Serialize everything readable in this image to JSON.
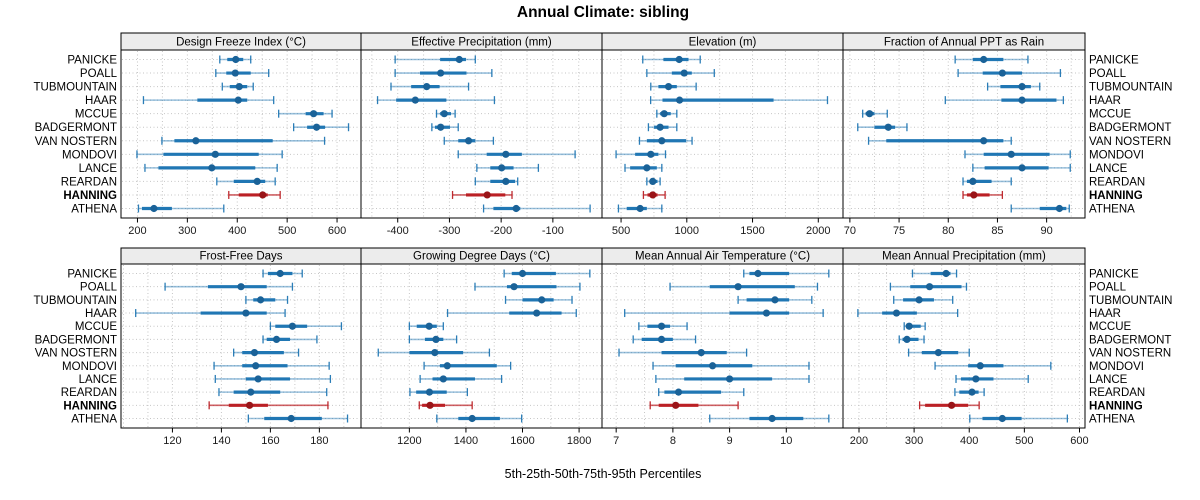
{
  "title": "Annual Climate: sibling",
  "caption": "5th-25th-50th-75th-95th Percentiles",
  "style": {
    "series_color": "#2077b4",
    "series_dot_color": "#1a6298",
    "highlight_color": "#bb2025",
    "highlight_dot_color": "#9a1418",
    "grid_color": "#c6c6c6",
    "strip_bg": "#ececec",
    "border_color": "#000000",
    "tick_label_color": "#1a1a1a"
  },
  "chart_data": {
    "type": "scatter",
    "subtype": "lattice percentile dotplot (dot = median, thick bar = 25th-75th, thin whisker = 5th-95th)",
    "percentiles": [
      5,
      25,
      50,
      75,
      95
    ],
    "stations": [
      "PANICKE",
      "POALL",
      "TUBMOUNTAIN",
      "HAAR",
      "MCCUE",
      "BADGERMONT",
      "VAN NOSTERN",
      "MONDOVI",
      "LANCE",
      "REARDAN",
      "HANNING",
      "ATHENA"
    ],
    "highlight_station": "HANNING",
    "legend_note": "highlighted station drawn in red, all others blue",
    "panels": [
      {
        "title": "Design Freeze Index (°C)",
        "row": 0,
        "col": 0,
        "domain": [
          167,
          648
        ],
        "ticks": [
          200,
          300,
          400,
          500,
          600
        ],
        "grid_step": 50,
        "series": [
          [
            365,
            380,
            397,
            412,
            427
          ],
          [
            357,
            378,
            396,
            427,
            463
          ],
          [
            370,
            385,
            404,
            420,
            432
          ],
          [
            212,
            320,
            402,
            420,
            473
          ],
          [
            483,
            537,
            553,
            573,
            590
          ],
          [
            513,
            540,
            559,
            576,
            623
          ],
          [
            249,
            274,
            317,
            471,
            575
          ],
          [
            199,
            252,
            356,
            443,
            490
          ],
          [
            215,
            242,
            349,
            436,
            480
          ],
          [
            359,
            393,
            440,
            456,
            476
          ],
          [
            383,
            403,
            451,
            461,
            486
          ],
          [
            202,
            209,
            233,
            269,
            373
          ]
        ]
      },
      {
        "title": "Effective Precipitation (mm)",
        "row": 0,
        "col": 1,
        "domain": [
          -471,
          -5
        ],
        "ticks": [
          -400,
          -300,
          -200,
          -100
        ],
        "grid_step": 50,
        "series": [
          [
            -405,
            -318,
            -281,
            -268,
            -250
          ],
          [
            -405,
            -357,
            -317,
            -267,
            -218
          ],
          [
            -413,
            -374,
            -344,
            -319,
            -263
          ],
          [
            -439,
            -403,
            -366,
            -306,
            -213
          ],
          [
            -325,
            -318,
            -310,
            -297,
            -289
          ],
          [
            -334,
            -328,
            -317,
            -299,
            -283
          ],
          [
            -310,
            -283,
            -263,
            -250,
            -215
          ],
          [
            -283,
            -228,
            -191,
            -160,
            -57
          ],
          [
            -247,
            -221,
            -199,
            -176,
            -128
          ],
          [
            -250,
            -221,
            -191,
            -173,
            -168
          ],
          [
            -294,
            -268,
            -227,
            -192,
            -179
          ],
          [
            -234,
            -215,
            -171,
            -163,
            -28
          ]
        ]
      },
      {
        "title": "Elevation (m)",
        "row": 0,
        "col": 2,
        "domain": [
          355,
          2188
        ],
        "ticks": [
          500,
          1000,
          1500,
          2000
        ],
        "grid_step": 250,
        "series": [
          [
            665,
            822,
            942,
            1013,
            1102
          ],
          [
            696,
            886,
            980,
            1038,
            1209
          ],
          [
            726,
            784,
            861,
            924,
            1071
          ],
          [
            725,
            815,
            945,
            1660,
            2070
          ],
          [
            772,
            797,
            828,
            878,
            924
          ],
          [
            708,
            751,
            797,
            861,
            924
          ],
          [
            640,
            696,
            810,
            995,
            1040
          ],
          [
            462,
            607,
            726,
            784,
            838
          ],
          [
            530,
            569,
            696,
            772,
            810
          ],
          [
            696,
            716,
            741,
            777,
            797
          ],
          [
            670,
            701,
            741,
            777,
            835
          ],
          [
            480,
            543,
            645,
            696,
            810
          ]
        ]
      },
      {
        "title": "Fraction of Annual PPT as Rain",
        "row": 0,
        "col": 3,
        "domain": [
          69.3,
          93.9
        ],
        "ticks": [
          70,
          75,
          80,
          85,
          90
        ],
        "grid_step": 2.5,
        "series": [
          [
            80.7,
            82.5,
            83.6,
            85.6,
            88.1
          ],
          [
            81.0,
            83.5,
            85.5,
            87.5,
            91.4
          ],
          [
            84.0,
            85.3,
            87.5,
            88.4,
            89.3
          ],
          [
            79.7,
            85.4,
            87.5,
            91.0,
            91.7
          ],
          [
            71.3,
            71.6,
            72.0,
            72.5,
            73.8
          ],
          [
            70.8,
            72.5,
            73.9,
            74.6,
            75.8
          ],
          [
            71.9,
            73.7,
            83.6,
            85.6,
            86.4
          ],
          [
            81.7,
            83.6,
            86.4,
            90.3,
            92.4
          ],
          [
            82.5,
            83.7,
            87.5,
            90.2,
            92.4
          ],
          [
            81.5,
            81.9,
            82.5,
            84.4,
            86.4
          ],
          [
            81.5,
            81.9,
            82.6,
            84.2,
            85.5
          ],
          [
            86.4,
            89.3,
            91.3,
            92.0,
            92.3
          ]
        ]
      },
      {
        "title": "Frost-Free Days",
        "row": 1,
        "col": 0,
        "domain": [
          99,
          197
        ],
        "ticks": [
          120,
          140,
          160,
          180
        ],
        "grid_step": 10,
        "series": [
          [
            157,
            159,
            164,
            169,
            173
          ],
          [
            117,
            134.5,
            148,
            158.5,
            169
          ],
          [
            150,
            153,
            156,
            162,
            167
          ],
          [
            105,
            131.5,
            150,
            158.5,
            166
          ],
          [
            160,
            162,
            169,
            175,
            189
          ],
          [
            157,
            158.5,
            162.5,
            168,
            179
          ],
          [
            145,
            148.5,
            153.5,
            165.5,
            171.5
          ],
          [
            137,
            148.5,
            154,
            167,
            184
          ],
          [
            137.5,
            150,
            155,
            168,
            184.5
          ],
          [
            139,
            145,
            152,
            164,
            183
          ],
          [
            135,
            143,
            151.5,
            159,
            183.5
          ],
          [
            151,
            157.5,
            168.5,
            181,
            191.5
          ]
        ]
      },
      {
        "title": "Growing Degree Days (°C)",
        "row": 1,
        "col": 1,
        "domain": [
          1029,
          1881
        ],
        "ticks": [
          1200,
          1400,
          1600,
          1800
        ],
        "grid_step": 100,
        "series": [
          [
            1535,
            1562,
            1600,
            1718,
            1838
          ],
          [
            1432,
            1545,
            1570,
            1720,
            1803
          ],
          [
            1540,
            1600,
            1668,
            1710,
            1775
          ],
          [
            1335,
            1553,
            1650,
            1738,
            1790
          ],
          [
            1200,
            1226,
            1270,
            1297,
            1320
          ],
          [
            1200,
            1255,
            1294,
            1320,
            1367
          ],
          [
            1090,
            1200,
            1290,
            1390,
            1483
          ],
          [
            1252,
            1308,
            1334,
            1509,
            1558
          ],
          [
            1238,
            1282,
            1320,
            1432,
            1526
          ],
          [
            1202,
            1224,
            1271,
            1332,
            1405
          ],
          [
            1235,
            1245,
            1273,
            1326,
            1422
          ],
          [
            1297,
            1373,
            1422,
            1520,
            1597
          ]
        ]
      },
      {
        "title": "Mean Annual Air Temperature (°C)",
        "row": 1,
        "col": 2,
        "domain": [
          6.75,
          11.0
        ],
        "ticks": [
          7,
          8,
          9,
          10
        ],
        "grid_step": 0.5,
        "series": [
          [
            9.25,
            9.35,
            9.5,
            10.05,
            10.75
          ],
          [
            7.95,
            8.65,
            9.15,
            10.15,
            10.55
          ],
          [
            9.15,
            9.3,
            9.8,
            10.05,
            10.45
          ],
          [
            7.15,
            9.0,
            9.65,
            10.05,
            10.65
          ],
          [
            7.4,
            7.55,
            7.8,
            7.95,
            8.25
          ],
          [
            7.3,
            7.45,
            7.8,
            8.0,
            8.4
          ],
          [
            7.05,
            7.8,
            8.5,
            8.95,
            9.3
          ],
          [
            7.65,
            8.05,
            8.7,
            9.4,
            10.4
          ],
          [
            7.7,
            8.2,
            9.0,
            9.75,
            10.4
          ],
          [
            7.75,
            7.85,
            8.1,
            8.85,
            9.25
          ],
          [
            7.6,
            7.75,
            8.05,
            8.45,
            9.15
          ],
          [
            8.65,
            9.35,
            9.75,
            10.3,
            10.75
          ]
        ]
      },
      {
        "title": "Mean Annual Precipitation (mm)",
        "row": 1,
        "col": 3,
        "domain": [
          171,
          610
        ],
        "ticks": [
          200,
          300,
          400,
          500,
          600
        ],
        "grid_step": 50,
        "series": [
          [
            297,
            330,
            358,
            366,
            377
          ],
          [
            257,
            293,
            328,
            386,
            395
          ],
          [
            263,
            280,
            309,
            336,
            370
          ],
          [
            198,
            242,
            268,
            305,
            379
          ],
          [
            282,
            286,
            291,
            312,
            320
          ],
          [
            273,
            279,
            287,
            308,
            318
          ],
          [
            290,
            314,
            344,
            380,
            400
          ],
          [
            338,
            398,
            420,
            462,
            548
          ],
          [
            376,
            385,
            412,
            444,
            507
          ],
          [
            374,
            382,
            405,
            417,
            427
          ],
          [
            310,
            320,
            368,
            398,
            418
          ],
          [
            401,
            424,
            460,
            495,
            578
          ]
        ]
      }
    ]
  }
}
